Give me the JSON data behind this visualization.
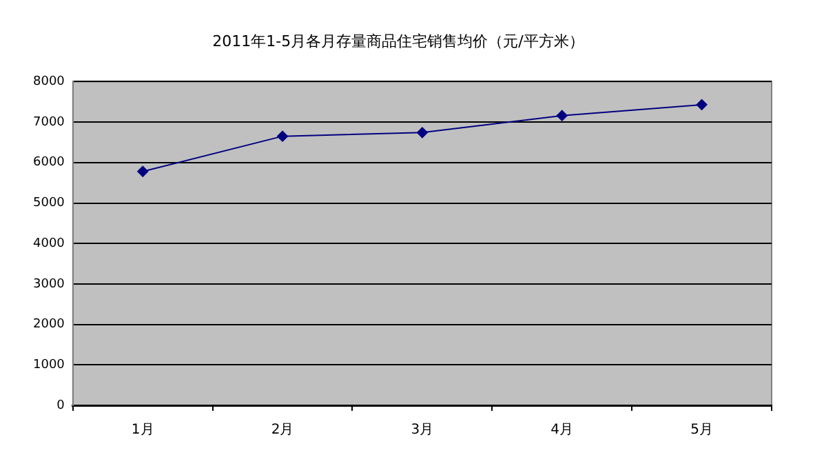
{
  "chart_data": {
    "type": "line",
    "title": "2011年1-5月各月存量商品住宅销售均价（元/平方米）",
    "categories": [
      "1月",
      "2月",
      "3月",
      "4月",
      "5月"
    ],
    "series": [
      {
        "color": "#000080",
        "values": [
          5780,
          6650,
          6740,
          7160,
          7430
        ]
      }
    ],
    "ylim": [
      0,
      8000
    ],
    "yticks": [
      0,
      1000,
      2000,
      3000,
      4000,
      5000,
      6000,
      7000,
      8000
    ],
    "grid": "y",
    "legend": false,
    "marker": "diamond",
    "line_style": "solid"
  }
}
